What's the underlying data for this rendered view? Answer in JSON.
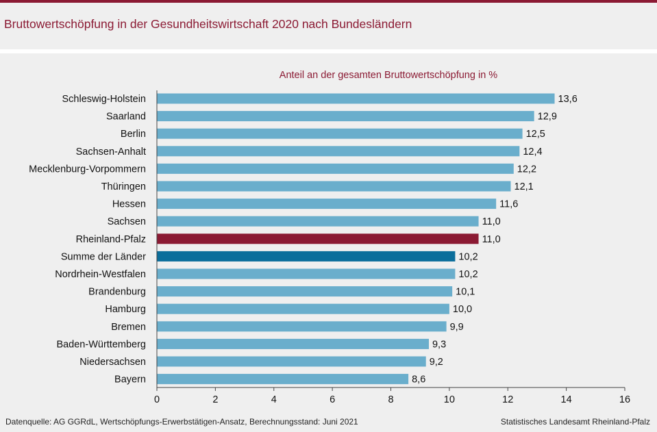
{
  "header": {
    "title": "Bruttowertschöpfung in der Gesundheitswirtschaft 2020 nach Bundesländern"
  },
  "colors": {
    "accent": "#8b1a33",
    "bar": "#6aaecc",
    "bar_highlight_state": "#8b1a33",
    "bar_highlight_total": "#0b6e9b",
    "background": "#efefef",
    "axis": "#444444"
  },
  "chart_data": {
    "type": "bar",
    "orientation": "horizontal",
    "title": "Anteil an der gesamten Bruttowertschöpfung  in %",
    "xlabel": "",
    "ylabel": "",
    "xlim": [
      0,
      16
    ],
    "xticks": [
      0,
      2,
      4,
      6,
      8,
      10,
      12,
      14,
      16
    ],
    "grid": false,
    "categories": [
      "Schleswig-Holstein",
      "Saarland",
      "Berlin",
      "Sachsen-Anhalt",
      "Mecklenburg-Vorpommern",
      "Thüringen",
      "Hessen",
      "Sachsen",
      "Rheinland-Pfalz",
      "Summe der Länder",
      "Nordrhein-Westfalen",
      "Brandenburg",
      "Hamburg",
      "Bremen",
      "Baden-Württemberg",
      "Niedersachsen",
      "Bayern"
    ],
    "values": [
      13.6,
      12.9,
      12.5,
      12.4,
      12.2,
      12.1,
      11.6,
      11.0,
      11.0,
      10.2,
      10.2,
      10.1,
      10.0,
      9.9,
      9.3,
      9.2,
      8.6
    ],
    "value_labels": [
      "13,6",
      "12,9",
      "12,5",
      "12,4",
      "12,2",
      "12,1",
      "11,6",
      "11,0",
      "11,0",
      "10,2",
      "10,2",
      "10,1",
      "10,0",
      "9,9",
      "9,3",
      "9,2",
      "8,6"
    ],
    "highlight": {
      "Rheinland-Pfalz": "state",
      "Summe der Länder": "total"
    }
  },
  "footer": {
    "source": "Datenquelle:  AG GGRdL, Wertschöpfungs-Erwerbstätigen-Ansatz,  Berechnungsstand:  Juni 2021",
    "publisher": "Statistisches Landesamt Rheinland-Pfalz"
  }
}
